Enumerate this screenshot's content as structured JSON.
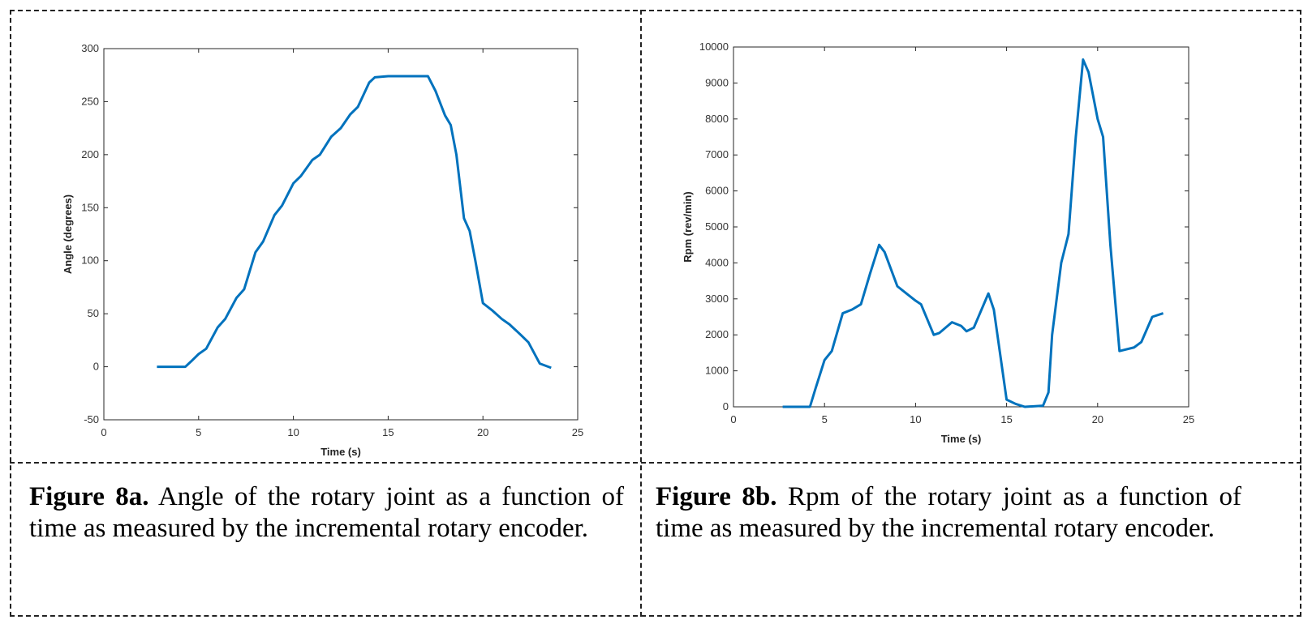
{
  "chart_data": [
    {
      "type": "line",
      "xlabel": "Time (s)",
      "ylabel": "Angle (degrees)",
      "xlim": [
        0,
        25
      ],
      "ylim": [
        -50,
        300
      ],
      "xticks": [
        "0",
        "5",
        "10",
        "15",
        "20",
        "25"
      ],
      "yticks": [
        "-50",
        "0",
        "50",
        "100",
        "150",
        "200",
        "250",
        "300"
      ],
      "grid": false,
      "color": "#0072BD",
      "x": [
        2.8,
        4.3,
        4.6,
        5,
        5.4,
        6,
        6.4,
        7,
        7.4,
        8,
        8.4,
        9,
        9.4,
        10,
        10.4,
        11,
        11.4,
        12,
        12.5,
        13,
        13.4,
        14,
        14.3,
        15,
        17.1,
        17.5,
        18,
        18.3,
        18.6,
        19,
        19.3,
        19.6,
        20,
        20.5,
        21,
        21.4,
        22,
        22.4,
        23,
        23.6
      ],
      "y": [
        0,
        0,
        5,
        12,
        17,
        37,
        45,
        65,
        73,
        108,
        118,
        143,
        152,
        173,
        180,
        195,
        200,
        217,
        225,
        238,
        245,
        268,
        273,
        274,
        274,
        260,
        237,
        228,
        200,
        140,
        128,
        100,
        60,
        53,
        45,
        40,
        30,
        23,
        3,
        -1
      ]
    },
    {
      "type": "line",
      "xlabel": "Time (s)",
      "ylabel": "Rpm (rev/min)",
      "xlim": [
        0,
        25
      ],
      "ylim": [
        0,
        10000
      ],
      "xticks": [
        "0",
        "5",
        "10",
        "15",
        "20",
        "25"
      ],
      "yticks": [
        "0",
        "1000",
        "2000",
        "3000",
        "4000",
        "5000",
        "6000",
        "7000",
        "8000",
        "9000",
        "10000"
      ],
      "grid": false,
      "color": "#0072BD",
      "x": [
        2.7,
        4.2,
        4.5,
        5,
        5.4,
        6,
        6.5,
        7,
        7.5,
        8,
        8.3,
        9,
        9.5,
        10,
        10.3,
        11,
        11.3,
        12,
        12.5,
        12.8,
        13.2,
        14,
        14.3,
        15,
        15.5,
        16,
        17,
        17.3,
        17.5,
        18,
        18.4,
        18.8,
        19.2,
        19.5,
        20,
        20.3,
        20.7,
        21.2,
        22,
        22.4,
        23,
        23.6
      ],
      "y": [
        0,
        0,
        500,
        1300,
        1550,
        2600,
        2700,
        2850,
        3700,
        4500,
        4300,
        3350,
        3150,
        2950,
        2850,
        2000,
        2050,
        2350,
        2250,
        2100,
        2200,
        3150,
        2700,
        200,
        80,
        0,
        30,
        400,
        2000,
        4000,
        4800,
        7500,
        9650,
        9300,
        8000,
        7500,
        4500,
        1550,
        1650,
        1800,
        2500,
        2600
      ]
    }
  ],
  "captions": [
    {
      "label": "Figure 8a.",
      "text": " Angle of the rotary joint as a function of time as measured by the incremental rotary encoder."
    },
    {
      "label": "Figure 8b.",
      "text": " Rpm of the rotary joint as a function of time as measured by the incremental rotary encoder."
    }
  ]
}
